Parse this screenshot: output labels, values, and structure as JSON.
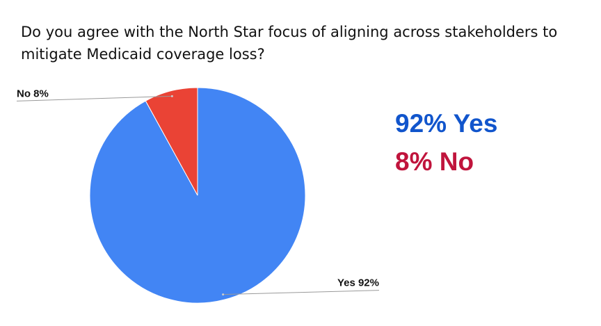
{
  "chart_data": {
    "type": "pie",
    "title": "Do you agree with the North Star focus of aligning across stakeholders to mitigate Medicaid coverage loss?",
    "categories": [
      "Yes",
      "No"
    ],
    "values": [
      92,
      8
    ],
    "value_labels": [
      "Yes 92%",
      "No 8%"
    ],
    "colors": [
      "#4285f4",
      "#ea4335"
    ],
    "annotations": [
      {
        "text": "92% Yes",
        "color": "#1155cc"
      },
      {
        "text": "8% No",
        "color": "#c0143c"
      }
    ]
  }
}
